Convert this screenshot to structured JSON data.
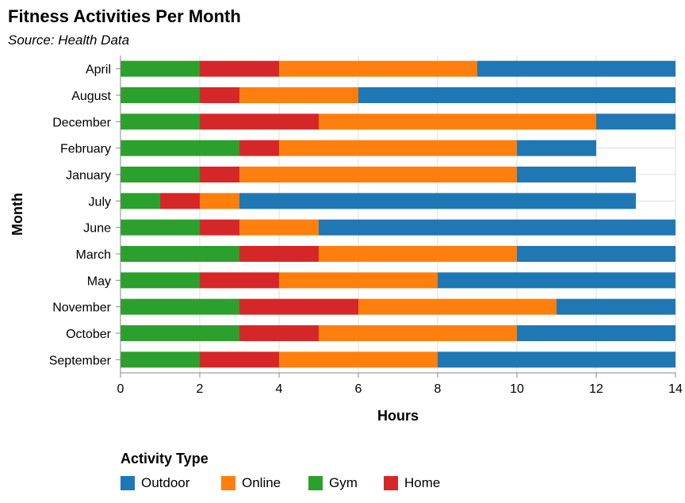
{
  "chart_data": {
    "type": "bar",
    "orientation": "horizontal",
    "stacked": true,
    "title": "Fitness Activities Per Month",
    "subtitle": "Source: Health Data",
    "xlabel": "Hours",
    "ylabel": "Month",
    "xlim": [
      0,
      14
    ],
    "xticks": [
      0,
      2,
      4,
      6,
      8,
      10,
      12,
      14
    ],
    "grid": true,
    "categories": [
      "April",
      "August",
      "December",
      "February",
      "January",
      "July",
      "June",
      "March",
      "May",
      "November",
      "October",
      "September"
    ],
    "series": [
      {
        "name": "Gym",
        "color": "#2ca02c",
        "values": [
          2,
          2,
          2,
          3,
          2,
          1,
          2,
          3,
          2,
          3,
          3,
          2
        ]
      },
      {
        "name": "Home",
        "color": "#d62728",
        "values": [
          2,
          1,
          3,
          1,
          1,
          1,
          1,
          2,
          2,
          3,
          2,
          2
        ]
      },
      {
        "name": "Online",
        "color": "#ff7f0e",
        "values": [
          5,
          3,
          7,
          6,
          7,
          1,
          2,
          5,
          4,
          5,
          5,
          4
        ]
      },
      {
        "name": "Outdoor",
        "color": "#1f77b4",
        "values": [
          5,
          8,
          2,
          2,
          3,
          10,
          9,
          4,
          6,
          3,
          4,
          6
        ]
      }
    ],
    "legend": {
      "title": "Activity Type",
      "placement": "bottom-left",
      "order": [
        "Outdoor",
        "Online",
        "Gym",
        "Home"
      ]
    }
  }
}
